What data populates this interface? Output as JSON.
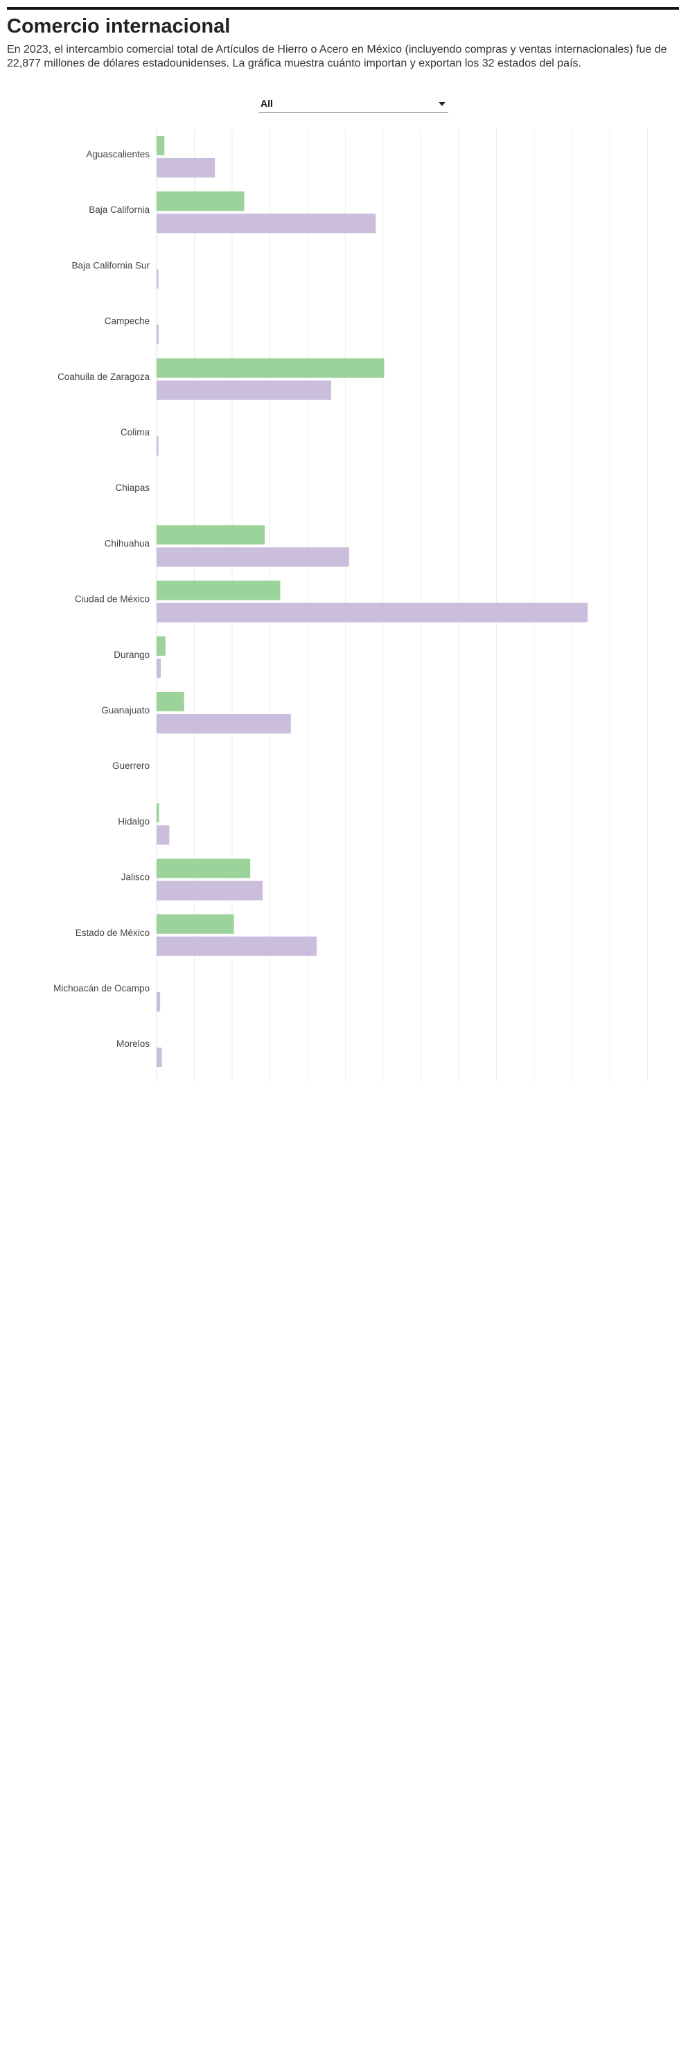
{
  "header": {
    "title": "Comercio internacional",
    "subtitle": "En 2023, el intercambio comercial total de Artículos de Hierro o Acero en México (incluyendo compras y ventas internacionales) fue de 22,877 millones de dólares estadounidenses. La gráfica muestra cuánto importan y exportan los 32 estados del país."
  },
  "filter": {
    "selected": "All",
    "icon": "caret-down-icon"
  },
  "colors": {
    "exports": "#9bd39b",
    "imports": "#cbbddc",
    "grid": "#ececec"
  },
  "chart_data": {
    "type": "bar",
    "orientation": "horizontal",
    "grid": true,
    "categories": [
      "Aguascalientes",
      "Baja California",
      "Baja California Sur",
      "Campeche",
      "Coahuila de Zaragoza",
      "Colima",
      "Chiapas",
      "Chihuahua",
      "Ciudad de México",
      "Durango",
      "Guanajuato",
      "Guerrero",
      "Hidalgo",
      "Jalisco",
      "Estado de México",
      "Michoacán de Ocampo",
      "Morelos"
    ],
    "series": [
      {
        "values": [
          0.22,
          2.48,
          0.0,
          0.0,
          6.44,
          0.0,
          0.0,
          3.06,
          3.5,
          0.25,
          0.78,
          0.0,
          0.07,
          2.65,
          2.19,
          0.0,
          0.0
        ]
      },
      {
        "values": [
          1.65,
          6.2,
          0.05,
          0.06,
          4.94,
          0.05,
          0.0,
          5.45,
          12.2,
          0.12,
          3.8,
          0.0,
          0.36,
          3.0,
          4.53,
          0.1,
          0.15
        ]
      }
    ],
    "xlim": [
      0,
      14
    ]
  }
}
